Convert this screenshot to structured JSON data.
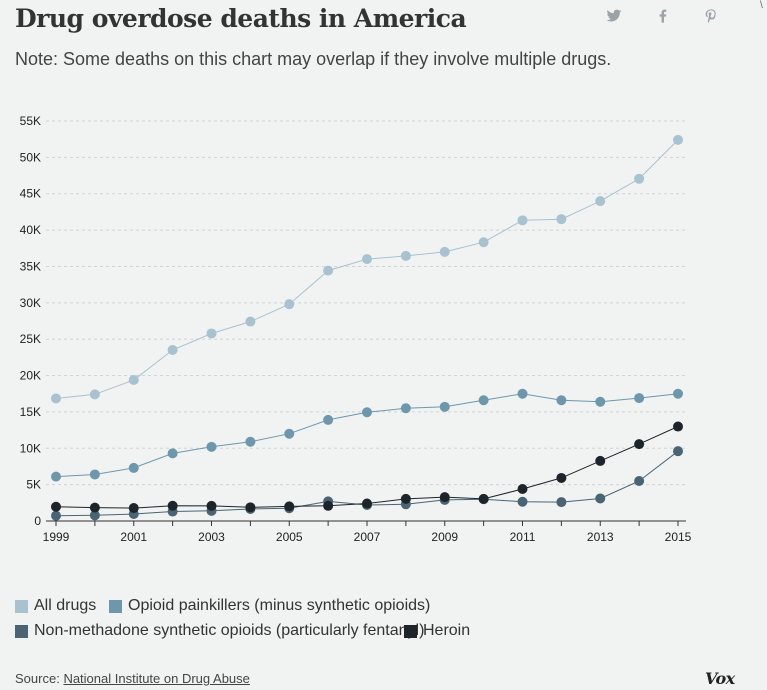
{
  "header": {
    "title": "Drug overdose deaths in America",
    "note": "Note: Some deaths on this chart may overlap if they involve multiple drugs.",
    "corner": "\\"
  },
  "share": {
    "twitter_icon": "twitter-icon",
    "facebook_icon": "facebook-icon",
    "pinterest_icon": "pinterest-icon"
  },
  "chart_data": {
    "type": "line",
    "title": "Drug overdose deaths in America",
    "xlabel": "",
    "ylabel": "",
    "x": [
      1999,
      2000,
      2001,
      2002,
      2003,
      2004,
      2005,
      2006,
      2007,
      2008,
      2009,
      2010,
      2011,
      2012,
      2013,
      2014,
      2015
    ],
    "x_ticks": [
      1999,
      2001,
      2003,
      2005,
      2007,
      2009,
      2011,
      2013,
      2015
    ],
    "y_ticks": [
      0,
      5000,
      10000,
      15000,
      20000,
      25000,
      30000,
      35000,
      40000,
      45000,
      50000,
      55000
    ],
    "y_tick_labels": [
      "0",
      "5K",
      "10K",
      "15K",
      "20K",
      "25K",
      "30K",
      "35K",
      "40K",
      "45K",
      "50K",
      "55K"
    ],
    "ylim": [
      0,
      55000
    ],
    "grid": true,
    "series": [
      {
        "name": "All drugs",
        "color": "#a9c2cf",
        "values": [
          16849,
          17415,
          19394,
          23518,
          25785,
          27424,
          29813,
          34425,
          36010,
          36450,
          37004,
          38329,
          41340,
          41502,
          43982,
          47055,
          52404
        ]
      },
      {
        "name": "Opioid painkillers (minus synthetic opioids)",
        "color": "#6e97ac",
        "values": [
          6100,
          6400,
          7300,
          9300,
          10200,
          10900,
          12000,
          13900,
          14950,
          15500,
          15700,
          16600,
          17500,
          16600,
          16400,
          16900,
          17500
        ]
      },
      {
        "name": "Non-methadone synthetic opioids (particularly fentanyl)",
        "color": "#4a6474",
        "values": [
          730,
          780,
          960,
          1300,
          1400,
          1650,
          1750,
          2700,
          2200,
          2300,
          2900,
          3000,
          2650,
          2600,
          3100,
          5500,
          9600
        ]
      },
      {
        "name": "Heroin",
        "color": "#1d252b",
        "values": [
          1960,
          1840,
          1780,
          2090,
          2080,
          1880,
          2010,
          2090,
          2400,
          3040,
          3280,
          3040,
          4400,
          5920,
          8260,
          10570,
          12990
        ]
      }
    ]
  },
  "source": {
    "label": "Source:",
    "link_text": "National Institute on Drug Abuse"
  },
  "brand": {
    "logo": "Vox"
  }
}
